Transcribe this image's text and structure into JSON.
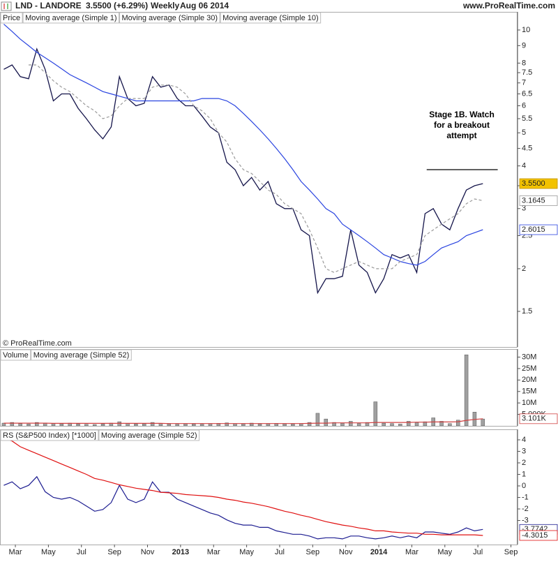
{
  "header": {
    "symbol": "LND - LANDORE",
    "quote": "3.5500 (+6.29%)",
    "period": "Weekly",
    "date": "Aug 06 2014",
    "site": "www.ProRealTime.com"
  },
  "copyright": "© ProRealTime.com",
  "chart_data": [
    {
      "type": "line",
      "log": true,
      "panel_label": "Price",
      "x": [
        1.3,
        1.8,
        2.3,
        2.8,
        3.3,
        3.8,
        4.3,
        4.8,
        5.3,
        5.8,
        6.3,
        6.8,
        7.3,
        7.8,
        8.3,
        8.8,
        9.3,
        9.8,
        10.3,
        10.8,
        11.3,
        11.8,
        12.3,
        12.8,
        13.3,
        13.8,
        14.3,
        14.8,
        15.3,
        15.8,
        16.3,
        16.8,
        17.3,
        17.8,
        18.3,
        18.8,
        19.3,
        19.8,
        20.3,
        20.8,
        21.3,
        21.8,
        22.3,
        22.8,
        23.3,
        23.8,
        24.3,
        24.8,
        25.3,
        25.8,
        26.3,
        26.8,
        27.3,
        27.8,
        28.3,
        28.8,
        29.3,
        29.8,
        30.3
      ],
      "xlim": [
        1.07,
        32.4
      ],
      "ylim": [
        1.18,
        11.3
      ],
      "yticks": [
        1.5,
        2,
        2.5,
        3,
        3.5,
        4,
        4.5,
        5,
        5.5,
        6,
        6.5,
        7,
        7.5,
        8,
        9,
        10
      ],
      "series": [
        {
          "name": "Moving average (Simple 1)",
          "color": "#14144a",
          "last_label": "3.5500",
          "label_fill": "#f2c200",
          "values": [
            7.67,
            7.9,
            7.3,
            7.2,
            8.8,
            7.67,
            6.2,
            6.5,
            6.5,
            5.9,
            5.5,
            5.1,
            4.8,
            5.2,
            7.3,
            6.3,
            6.0,
            6.1,
            7.3,
            6.8,
            6.9,
            6.3,
            6.0,
            6.0,
            5.6,
            5.2,
            5.0,
            4.1,
            3.9,
            3.5,
            3.7,
            3.4,
            3.6,
            3.1,
            3.0,
            3.0,
            2.6,
            2.5,
            1.7,
            1.87,
            1.87,
            1.9,
            2.6,
            2.05,
            1.95,
            1.7,
            1.87,
            2.2,
            2.15,
            2.2,
            1.95,
            2.9,
            3.0,
            2.7,
            2.6,
            3.0,
            3.4,
            3.5,
            3.55
          ]
        },
        {
          "name": "Moving average (Simple 30)",
          "color": "#2a44e0",
          "last_label": "2.6015",
          "label_fill": "#ffffff",
          "values": [
            10.4,
            9.9,
            9.4,
            9.0,
            8.6,
            8.3,
            8.0,
            7.7,
            7.4,
            7.2,
            7.0,
            6.8,
            6.6,
            6.5,
            6.4,
            6.3,
            6.2,
            6.2,
            6.2,
            6.2,
            6.2,
            6.2,
            6.2,
            6.2,
            6.3,
            6.3,
            6.3,
            6.2,
            6.0,
            5.7,
            5.4,
            5.1,
            4.8,
            4.5,
            4.2,
            3.9,
            3.6,
            3.4,
            3.2,
            3.0,
            2.9,
            2.7,
            2.6,
            2.5,
            2.4,
            2.3,
            2.2,
            2.15,
            2.1,
            2.07,
            2.05,
            2.1,
            2.2,
            2.3,
            2.35,
            2.4,
            2.5,
            2.55,
            2.6015
          ]
        },
        {
          "name": "Moving average (Simple 10)",
          "color": "#9a9a9a",
          "dash": true,
          "last_label": "3.1645",
          "label_fill": "#ffffff",
          "values": [
            null,
            null,
            null,
            7.9,
            7.9,
            7.5,
            7.1,
            6.8,
            6.6,
            6.3,
            6.0,
            5.8,
            5.5,
            5.6,
            6.0,
            6.3,
            6.3,
            6.3,
            6.8,
            6.9,
            6.9,
            6.8,
            6.5,
            6.0,
            5.8,
            5.5,
            5.0,
            4.7,
            4.2,
            3.9,
            3.8,
            3.6,
            3.4,
            3.3,
            3.1,
            3.0,
            2.9,
            2.6,
            2.3,
            2.0,
            1.95,
            2.0,
            2.05,
            2.1,
            2.05,
            2.0,
            2.0,
            2.0,
            2.1,
            2.15,
            2.2,
            2.5,
            2.6,
            2.7,
            2.8,
            2.9,
            3.1,
            3.2,
            3.1645
          ]
        }
      ],
      "annotation_lines": [
        "Stage 1B. Watch",
        "for a breakout",
        "attempt"
      ],
      "annotation_line": {
        "y": 3.9,
        "x": [
          26.9,
          31.2
        ]
      }
    },
    {
      "type": "bar",
      "x": [
        1.3,
        1.8,
        2.3,
        2.8,
        3.3,
        3.8,
        4.3,
        4.8,
        5.3,
        5.8,
        6.3,
        6.8,
        7.3,
        7.8,
        8.3,
        8.8,
        9.3,
        9.8,
        10.3,
        10.8,
        11.3,
        11.8,
        12.3,
        12.8,
        13.3,
        13.8,
        14.3,
        14.8,
        15.3,
        15.8,
        16.3,
        16.8,
        17.3,
        17.8,
        18.3,
        18.8,
        19.3,
        19.8,
        20.3,
        20.8,
        21.3,
        21.8,
        22.3,
        22.8,
        23.3,
        23.8,
        24.3,
        24.8,
        25.3,
        25.8,
        26.3,
        26.8,
        27.3,
        27.8,
        28.3,
        28.8,
        29.3,
        29.8,
        30.3
      ],
      "xlim": [
        1.07,
        32.4
      ],
      "ylim": [
        0,
        33.5
      ],
      "yticks": [
        {
          "value": 30,
          "label": "30M"
        },
        {
          "value": 25,
          "label": "25M"
        },
        {
          "value": 20,
          "label": "20M"
        },
        {
          "value": 15,
          "label": "15M"
        },
        {
          "value": 10,
          "label": "10M"
        },
        {
          "value": 5,
          "label": "5.000K"
        }
      ],
      "series": [
        {
          "name": "Volume",
          "kind": "bar",
          "color": "#a0a0a0",
          "values": [
            1.2,
            1.5,
            1.0,
            0.8,
            1.5,
            1.3,
            1.0,
            0.9,
            1.2,
            0.8,
            0.7,
            0.6,
            0.8,
            1.2,
            1.8,
            1.0,
            0.8,
            0.9,
            1.5,
            1.0,
            0.8,
            0.7,
            0.9,
            0.8,
            0.7,
            1.0,
            1.1,
            1.3,
            1.0,
            0.9,
            1.2,
            0.8,
            1.0,
            1.1,
            0.9,
            0.8,
            1.0,
            1.5,
            5.5,
            3.0,
            1.5,
            1.2,
            2.0,
            1.0,
            1.5,
            10.5,
            1.2,
            1.0,
            0.8,
            2.0,
            1.5,
            1.8,
            3.5,
            2.0,
            1.0,
            2.5,
            31.0,
            6.0,
            3.0
          ]
        },
        {
          "name": "Moving average (Simple 52)",
          "kind": "line",
          "color": "#d04040",
          "last_label": "3.101K",
          "label_fill": "#ffffff",
          "values": [
            1.2,
            1.2,
            1.2,
            1.2,
            1.2,
            1.2,
            1.1,
            1.1,
            1.1,
            1.1,
            1.1,
            1.1,
            1.1,
            1.1,
            1.1,
            1.1,
            1.1,
            1.1,
            1.1,
            1.1,
            1.0,
            1.0,
            1.0,
            1.0,
            1.0,
            1.0,
            1.0,
            1.0,
            1.0,
            1.0,
            1.0,
            1.0,
            1.0,
            1.0,
            1.0,
            1.0,
            1.0,
            1.1,
            1.2,
            1.2,
            1.3,
            1.3,
            1.3,
            1.3,
            1.3,
            1.5,
            1.5,
            1.5,
            1.5,
            1.5,
            1.6,
            1.6,
            1.7,
            1.7,
            1.7,
            1.8,
            2.4,
            2.8,
            3.101
          ]
        }
      ]
    },
    {
      "type": "line",
      "x": [
        1.3,
        1.8,
        2.3,
        2.8,
        3.3,
        3.8,
        4.3,
        4.8,
        5.3,
        5.8,
        6.3,
        6.8,
        7.3,
        7.8,
        8.3,
        8.8,
        9.3,
        9.8,
        10.3,
        10.8,
        11.3,
        11.8,
        12.3,
        12.8,
        13.3,
        13.8,
        14.3,
        14.8,
        15.3,
        15.8,
        16.3,
        16.8,
        17.3,
        17.8,
        18.3,
        18.8,
        19.3,
        19.8,
        20.3,
        20.8,
        21.3,
        21.8,
        22.3,
        22.8,
        23.3,
        23.8,
        24.3,
        24.8,
        25.3,
        25.8,
        26.3,
        26.8,
        27.3,
        27.8,
        28.3,
        28.8,
        29.3,
        29.8,
        30.3
      ],
      "xlim": [
        1.07,
        32.4
      ],
      "ylim": [
        -5.09,
        4.91
      ],
      "yticks": [
        4,
        3,
        2,
        1,
        0,
        -1,
        -2,
        -3
      ],
      "xticks": [
        {
          "value": 2,
          "label": "Mar"
        },
        {
          "value": 4,
          "label": "May"
        },
        {
          "value": 6,
          "label": "Jul"
        },
        {
          "value": 8,
          "label": "Sep"
        },
        {
          "value": 10,
          "label": "Nov"
        },
        {
          "value": 12,
          "label": "2013"
        },
        {
          "value": 14,
          "label": "Mar"
        },
        {
          "value": 16,
          "label": "May"
        },
        {
          "value": 18,
          "label": "Jul"
        },
        {
          "value": 20,
          "label": "Sep"
        },
        {
          "value": 22,
          "label": "Nov"
        },
        {
          "value": 24,
          "label": "2014"
        },
        {
          "value": 26,
          "label": "Mar"
        },
        {
          "value": 28,
          "label": "May"
        },
        {
          "value": 30,
          "label": "Jul"
        },
        {
          "value": 32,
          "label": "Sep"
        }
      ],
      "series": [
        {
          "name": "RS (S&P500 Index) [*1000]",
          "color": "#1c1c90",
          "last_label": "-3.7742",
          "label_fill": "#ffffff",
          "values": [
            0.05,
            0.35,
            -0.25,
            0.05,
            0.8,
            -0.5,
            -1.0,
            -1.15,
            -1.0,
            -1.3,
            -1.75,
            -2.2,
            -2.05,
            -1.45,
            0.05,
            -1.15,
            -1.45,
            -1.15,
            0.35,
            -0.55,
            -0.55,
            -1.15,
            -1.45,
            -1.75,
            -2.05,
            -2.35,
            -2.55,
            -2.95,
            -3.25,
            -3.4,
            -3.4,
            -3.6,
            -3.6,
            -3.9,
            -4.05,
            -4.2,
            -4.2,
            -4.35,
            -4.6,
            -4.5,
            -4.5,
            -4.6,
            -4.35,
            -4.35,
            -4.5,
            -4.6,
            -4.5,
            -4.35,
            -4.5,
            -4.35,
            -4.5,
            -4.0,
            -4.0,
            -4.1,
            -4.2,
            -4.0,
            -3.65,
            -3.9,
            -3.7742
          ]
        },
        {
          "name": "Moving average (Simple 52)",
          "color": "#e01010",
          "last_label": "-4.3015",
          "label_fill": "#ffffff",
          "values": [
            4.1,
            3.9,
            3.4,
            3.1,
            2.8,
            2.5,
            2.2,
            1.9,
            1.6,
            1.3,
            1.0,
            0.65,
            0.5,
            0.3,
            0.1,
            -0.05,
            -0.2,
            -0.3,
            -0.4,
            -0.55,
            -0.6,
            -0.65,
            -0.75,
            -0.8,
            -0.85,
            -0.9,
            -1.0,
            -1.15,
            -1.25,
            -1.4,
            -1.5,
            -1.65,
            -1.8,
            -2.0,
            -2.2,
            -2.35,
            -2.55,
            -2.7,
            -2.9,
            -3.1,
            -3.25,
            -3.4,
            -3.5,
            -3.65,
            -3.75,
            -3.9,
            -3.9,
            -4.0,
            -4.05,
            -4.1,
            -4.1,
            -4.2,
            -4.2,
            -4.25,
            -4.25,
            -4.25,
            -4.25,
            -4.25,
            -4.3015
          ]
        }
      ]
    }
  ]
}
